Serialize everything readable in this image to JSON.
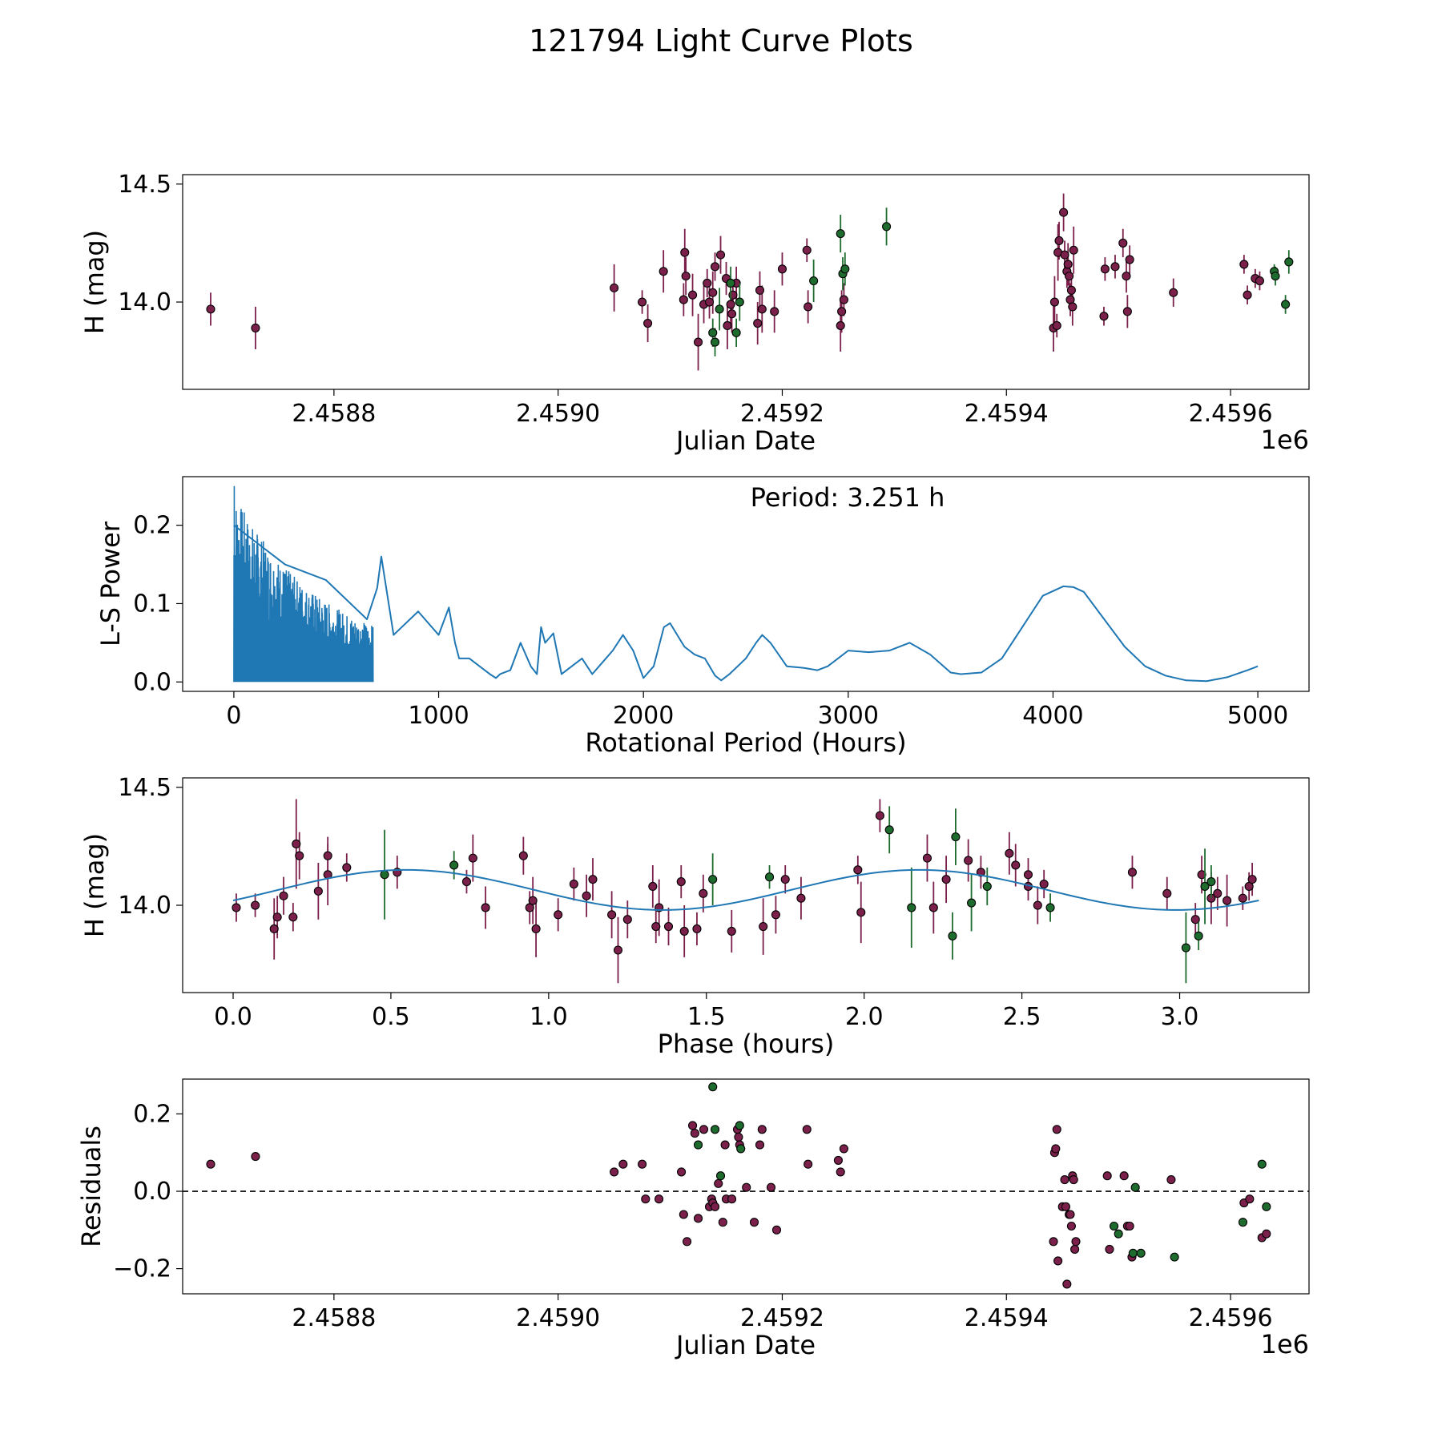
{
  "suptitle": "121794 Light Curve Plots",
  "colors": {
    "survey_a": "#7b1f4b",
    "survey_b": "#1e6b2e",
    "fit_line": "#1f77b4",
    "periodogram": "#1f77b4"
  },
  "chart_data": [
    {
      "type": "scatter",
      "name": "lightcurve",
      "xlabel": "Julian Date",
      "ylabel": "H (mag)",
      "xlim": [
        2458665,
        2459670
      ],
      "ylim": [
        13.63,
        14.54
      ],
      "xticks": [
        2458800,
        2459000,
        2459200,
        2459400,
        2459600
      ],
      "xtick_labels": [
        "2.4588",
        "2.4590",
        "2.4592",
        "2.4594",
        "2.4596"
      ],
      "yticks": [
        14.0,
        14.5
      ],
      "ytick_labels": [
        "14.0",
        "14.5"
      ],
      "offset_label": "1e6",
      "series": [
        {
          "name": "survey_a",
          "color": "#7b1f4b",
          "x": [
            2458690,
            2458730,
            2459050,
            2459075,
            2459080,
            2459094,
            2459112,
            2459113,
            2459114,
            2459120,
            2459125,
            2459130,
            2459133,
            2459135,
            2459138,
            2459140,
            2459145,
            2459150,
            2459151,
            2459154,
            2459155,
            2459156,
            2459159,
            2459178,
            2459180,
            2459182,
            2459193,
            2459200,
            2459222,
            2459223,
            2459252,
            2459253,
            2459255,
            2459442,
            2459443,
            2459445,
            2459446,
            2459447,
            2459451,
            2459452,
            2459454,
            2459455,
            2459456,
            2459457,
            2459458,
            2459459,
            2459460,
            2459487,
            2459488,
            2459497,
            2459504,
            2459507,
            2459508,
            2459510,
            2459549,
            2459612,
            2459615,
            2459622,
            2459626
          ],
          "y": [
            13.97,
            13.89,
            14.06,
            14.0,
            13.91,
            14.13,
            14.01,
            14.21,
            14.11,
            14.03,
            13.83,
            13.99,
            14.08,
            14.0,
            14.04,
            14.15,
            14.2,
            14.1,
            13.9,
            13.99,
            13.95,
            14.03,
            14.08,
            13.91,
            14.05,
            13.97,
            13.96,
            14.14,
            14.22,
            13.98,
            13.9,
            13.96,
            14.01,
            13.89,
            14.0,
            13.9,
            14.21,
            14.26,
            14.38,
            14.2,
            14.13,
            14.16,
            14.11,
            14.01,
            14.05,
            13.98,
            14.22,
            13.94,
            14.14,
            14.15,
            14.25,
            14.11,
            13.96,
            14.18,
            14.04,
            14.16,
            14.03,
            14.1,
            14.09
          ],
          "yerr": [
            0.07,
            0.09,
            0.1,
            0.05,
            0.08,
            0.09,
            0.07,
            0.1,
            0.08,
            0.09,
            0.12,
            0.08,
            0.06,
            0.07,
            0.09,
            0.06,
            0.08,
            0.07,
            0.1,
            0.1,
            0.08,
            0.06,
            0.07,
            0.09,
            0.08,
            0.1,
            0.09,
            0.07,
            0.05,
            0.07,
            0.11,
            0.09,
            0.07,
            0.1,
            0.11,
            0.05,
            0.12,
            0.08,
            0.08,
            0.06,
            0.07,
            0.09,
            0.06,
            0.07,
            0.05,
            0.08,
            0.1,
            0.04,
            0.05,
            0.05,
            0.06,
            0.07,
            0.07,
            0.06,
            0.06,
            0.04,
            0.04,
            0.04,
            0.04
          ]
        },
        {
          "name": "survey_b",
          "color": "#1e6b2e",
          "x": [
            2459138,
            2459140,
            2459162,
            2459144,
            2459154,
            2459159,
            2459228,
            2459252,
            2459254,
            2459256,
            2459293,
            2459639,
            2459640,
            2459649,
            2459652
          ],
          "y": [
            13.87,
            13.83,
            14.0,
            13.97,
            14.08,
            13.87,
            14.09,
            14.29,
            14.12,
            14.14,
            14.32,
            14.13,
            14.11,
            13.99,
            14.17
          ],
          "yerr": [
            0.06,
            0.06,
            0.08,
            0.09,
            0.07,
            0.06,
            0.09,
            0.08,
            0.07,
            0.07,
            0.08,
            0.03,
            0.04,
            0.04,
            0.05
          ]
        }
      ]
    },
    {
      "type": "line",
      "name": "periodogram",
      "xlabel": "Rotational Period (Hours)",
      "ylabel": "L-S Power",
      "annotation": "Period: 3.251 h",
      "xlim": [
        -250,
        5250
      ],
      "ylim": [
        -0.012,
        0.262
      ],
      "xticks": [
        0,
        1000,
        2000,
        3000,
        4000,
        5000
      ],
      "xtick_labels": [
        "0",
        "1000",
        "2000",
        "3000",
        "4000",
        "5000"
      ],
      "yticks": [
        0.0,
        0.1,
        0.2
      ],
      "ytick_labels": [
        "0.0",
        "0.1",
        "0.2"
      ],
      "x": [
        0,
        250,
        450,
        650,
        700,
        720,
        780,
        900,
        1000,
        1050,
        1080,
        1100,
        1150,
        1200,
        1250,
        1280,
        1300,
        1350,
        1400,
        1450,
        1480,
        1500,
        1520,
        1560,
        1600,
        1650,
        1700,
        1750,
        1800,
        1850,
        1900,
        1950,
        2000,
        2050,
        2100,
        2130,
        2200,
        2250,
        2300,
        2350,
        2380,
        2420,
        2500,
        2550,
        2580,
        2620,
        2700,
        2780,
        2850,
        2900,
        2950,
        3000,
        3100,
        3200,
        3300,
        3400,
        3500,
        3550,
        3650,
        3750,
        3850,
        3950,
        4050,
        4100,
        4150,
        4250,
        4350,
        4450,
        4550,
        4650,
        4750,
        4850,
        4950,
        5000
      ],
      "y": [
        0.2,
        0.15,
        0.13,
        0.08,
        0.12,
        0.16,
        0.06,
        0.09,
        0.06,
        0.095,
        0.05,
        0.03,
        0.03,
        0.02,
        0.01,
        0.005,
        0.01,
        0.015,
        0.05,
        0.02,
        0.01,
        0.07,
        0.05,
        0.062,
        0.01,
        0.02,
        0.03,
        0.01,
        0.025,
        0.04,
        0.06,
        0.04,
        0.005,
        0.02,
        0.07,
        0.075,
        0.045,
        0.035,
        0.03,
        0.008,
        0.002,
        0.01,
        0.03,
        0.05,
        0.06,
        0.05,
        0.02,
        0.018,
        0.015,
        0.02,
        0.03,
        0.04,
        0.038,
        0.04,
        0.05,
        0.035,
        0.012,
        0.01,
        0.012,
        0.03,
        0.07,
        0.11,
        0.122,
        0.121,
        0.115,
        0.08,
        0.045,
        0.02,
        0.008,
        0.002,
        0.001,
        0.006,
        0.015,
        0.02
      ],
      "dense_range": [
        0,
        680
      ],
      "peak_max": 0.25
    },
    {
      "type": "scatter",
      "name": "phased",
      "xlabel": "Phase (hours)",
      "ylabel": "H (mag)",
      "xlim": [
        -0.16,
        3.41
      ],
      "ylim": [
        13.63,
        14.54
      ],
      "xticks": [
        0.0,
        0.5,
        1.0,
        1.5,
        2.0,
        2.5,
        3.0
      ],
      "xtick_labels": [
        "0.0",
        "0.5",
        "1.0",
        "1.5",
        "2.0",
        "2.5",
        "3.0"
      ],
      "yticks": [
        14.0,
        14.5
      ],
      "ytick_labels": [
        "14.0",
        "14.5"
      ],
      "fit": {
        "mean": 14.065,
        "amplitude": 0.085,
        "phase_shift": 0.0,
        "period": 3.251,
        "x_max": 3.251
      },
      "series": [
        {
          "name": "survey_a",
          "color": "#7b1f4b",
          "x": [
            0.01,
            0.07,
            0.13,
            0.14,
            0.16,
            0.19,
            0.2,
            0.21,
            0.27,
            0.3,
            0.3,
            0.36,
            0.52,
            0.74,
            0.76,
            0.8,
            0.92,
            0.94,
            0.95,
            0.96,
            1.03,
            1.08,
            1.12,
            1.14,
            1.2,
            1.22,
            1.25,
            1.33,
            1.34,
            1.35,
            1.38,
            1.42,
            1.43,
            1.47,
            1.49,
            1.58,
            1.68,
            1.72,
            1.75,
            1.8,
            1.98,
            1.99,
            2.05,
            2.2,
            2.22,
            2.26,
            2.33,
            2.37,
            2.46,
            2.48,
            2.52,
            2.52,
            2.55,
            2.57,
            2.85,
            2.96,
            3.05,
            3.07,
            3.1,
            3.12,
            3.15,
            3.2,
            3.22,
            3.23
          ],
          "y": [
            13.99,
            14.0,
            13.9,
            13.95,
            14.04,
            13.95,
            14.26,
            14.21,
            14.06,
            14.13,
            14.21,
            14.16,
            14.14,
            14.1,
            14.2,
            13.99,
            14.21,
            13.99,
            14.02,
            13.9,
            13.96,
            14.09,
            14.04,
            14.11,
            13.96,
            13.81,
            13.94,
            14.08,
            13.91,
            13.99,
            13.91,
            14.1,
            13.89,
            13.9,
            14.05,
            13.89,
            13.91,
            13.96,
            14.11,
            14.03,
            14.15,
            13.97,
            14.38,
            14.2,
            13.99,
            14.11,
            14.19,
            14.14,
            14.22,
            14.17,
            14.13,
            14.08,
            14.0,
            14.09,
            14.14,
            14.05,
            13.94,
            14.13,
            14.03,
            14.05,
            14.02,
            14.03,
            14.08,
            14.11
          ],
          "yerr": [
            0.06,
            0.05,
            0.13,
            0.09,
            0.08,
            0.06,
            0.19,
            0.1,
            0.12,
            0.13,
            0.08,
            0.06,
            0.07,
            0.05,
            0.1,
            0.09,
            0.08,
            0.07,
            0.1,
            0.12,
            0.07,
            0.07,
            0.09,
            0.09,
            0.1,
            0.14,
            0.08,
            0.09,
            0.07,
            0.12,
            0.08,
            0.07,
            0.11,
            0.07,
            0.08,
            0.09,
            0.12,
            0.08,
            0.06,
            0.09,
            0.06,
            0.13,
            0.07,
            0.1,
            0.11,
            0.1,
            0.09,
            0.07,
            0.09,
            0.09,
            0.07,
            0.06,
            0.08,
            0.06,
            0.07,
            0.07,
            0.07,
            0.08,
            0.11,
            0.07,
            0.11,
            0.05,
            0.06,
            0.07
          ]
        },
        {
          "name": "survey_b",
          "color": "#1e6b2e",
          "x": [
            0.48,
            0.7,
            1.52,
            1.7,
            2.08,
            2.15,
            2.28,
            2.29,
            2.34,
            2.39,
            2.59,
            3.02,
            3.06,
            3.08,
            3.1
          ],
          "y": [
            14.13,
            14.17,
            14.11,
            14.12,
            14.32,
            13.99,
            13.87,
            14.29,
            14.01,
            14.08,
            13.99,
            13.82,
            13.87,
            14.08,
            14.1
          ],
          "yerr": [
            0.19,
            0.06,
            0.11,
            0.05,
            0.1,
            0.17,
            0.1,
            0.12,
            0.12,
            0.08,
            0.06,
            0.15,
            0.06,
            0.16,
            0.07
          ]
        }
      ]
    },
    {
      "type": "scatter",
      "name": "residuals",
      "xlabel": "Julian Date",
      "ylabel": "Residuals",
      "xlim": [
        2458665,
        2459670
      ],
      "ylim": [
        -0.265,
        0.29
      ],
      "xticks": [
        2458800,
        2459000,
        2459200,
        2459400,
        2459600
      ],
      "xtick_labels": [
        "2.4588",
        "2.4590",
        "2.4592",
        "2.4594",
        "2.4596"
      ],
      "yticks": [
        -0.2,
        0.0,
        0.2
      ],
      "ytick_labels": [
        "−0.2",
        "0.0",
        "0.2"
      ],
      "offset_label": "1e6",
      "reference_line": 0.0,
      "series": [
        {
          "name": "survey_a",
          "color": "#7b1f4b",
          "x": [
            2458690,
            2458730,
            2459050,
            2459058,
            2459075,
            2459078,
            2459090,
            2459110,
            2459112,
            2459115,
            2459120,
            2459122,
            2459125,
            2459130,
            2459135,
            2459137,
            2459138,
            2459140,
            2459143,
            2459147,
            2459149,
            2459150,
            2459155,
            2459160,
            2459161,
            2459162,
            2459168,
            2459175,
            2459180,
            2459182,
            2459190,
            2459195,
            2459222,
            2459223,
            2459250,
            2459252,
            2459255,
            2459442,
            2459443,
            2459444,
            2459445,
            2459446,
            2459450,
            2459452,
            2459453,
            2459454,
            2459456,
            2459457,
            2459458,
            2459459,
            2459460,
            2459461,
            2459462,
            2459490,
            2459492,
            2459505,
            2459508,
            2459510,
            2459512,
            2459547,
            2459612,
            2459617,
            2459628,
            2459632
          ],
          "y": [
            0.07,
            0.09,
            0.05,
            0.07,
            0.07,
            -0.02,
            -0.02,
            0.05,
            -0.06,
            -0.13,
            0.17,
            0.15,
            -0.07,
            0.16,
            -0.04,
            -0.02,
            -0.03,
            -0.04,
            0.02,
            -0.08,
            0.12,
            -0.02,
            -0.02,
            0.16,
            0.14,
            0.12,
            0.01,
            -0.08,
            0.12,
            0.16,
            0.01,
            -0.1,
            0.16,
            0.07,
            0.08,
            0.05,
            0.11,
            -0.13,
            0.1,
            0.11,
            0.16,
            -0.18,
            -0.04,
            0.03,
            -0.04,
            -0.24,
            -0.06,
            -0.06,
            -0.09,
            0.04,
            0.03,
            -0.15,
            -0.13,
            0.04,
            -0.15,
            0.04,
            -0.09,
            -0.09,
            -0.17,
            0.03,
            -0.03,
            -0.02,
            -0.12,
            -0.11
          ],
          "_note": "value list read from figure"
        },
        {
          "name": "survey_b",
          "color": "#1e6b2e",
          "x": [
            2459125,
            2459138,
            2459140,
            2459145,
            2459162,
            2459163,
            2459496,
            2459500,
            2459513,
            2459515,
            2459520,
            2459550,
            2459611,
            2459628,
            2459632
          ],
          "y": [
            0.12,
            0.27,
            0.16,
            0.04,
            0.17,
            0.11,
            -0.09,
            -0.11,
            -0.16,
            0.01,
            -0.16,
            -0.17,
            -0.08,
            0.07,
            -0.04
          ]
        }
      ]
    }
  ]
}
